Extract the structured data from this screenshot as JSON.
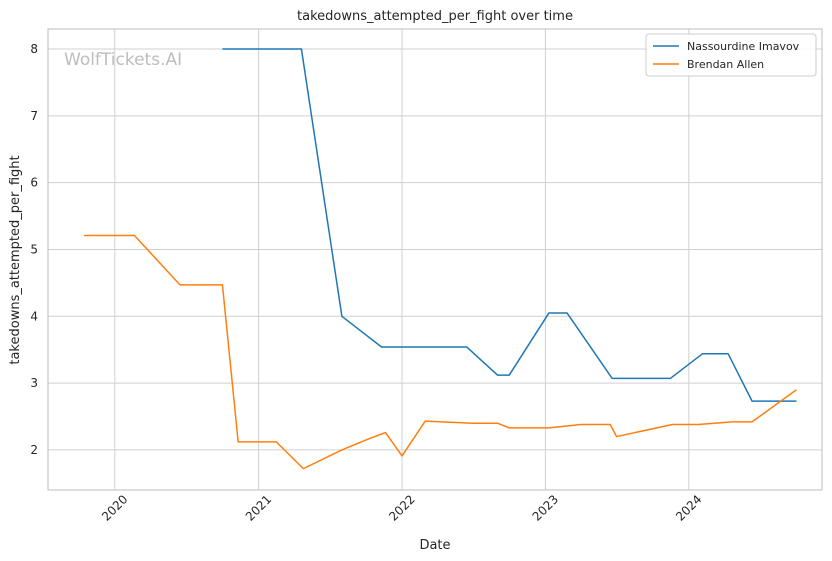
{
  "watermark": "WolfTickets.AI",
  "colors": {
    "grid": "#d0d0d0",
    "axis": "#bdbdbd",
    "series1": "#1f77b4",
    "series2": "#ff7f0e"
  },
  "chart_data": {
    "type": "line",
    "title": "takedowns_attempted_per_fight over time",
    "xlabel": "Date",
    "ylabel": "takedowns_attempted_per_fight",
    "xlim": [
      "2019-07-15",
      "2024-12-05"
    ],
    "ylim": [
      1.4,
      8.3
    ],
    "x_ticks": [
      "2020-01-01",
      "2021-01-01",
      "2022-01-01",
      "2023-01-01",
      "2024-01-01"
    ],
    "x_tick_labels": [
      "2020",
      "2021",
      "2022",
      "2023",
      "2024"
    ],
    "y_ticks": [
      2,
      3,
      4,
      5,
      6,
      7,
      8
    ],
    "y_tick_labels": [
      "2",
      "3",
      "4",
      "5",
      "6",
      "7",
      "8"
    ],
    "grid": true,
    "legend_position": "top-right",
    "series": [
      {
        "name": "Nassourdine Imavov",
        "color": "#1f77b4",
        "points": [
          [
            "2020-10-01",
            8.0
          ],
          [
            "2021-04-20",
            8.0
          ],
          [
            "2021-08-01",
            4.0
          ],
          [
            "2021-11-10",
            3.54
          ],
          [
            "2022-06-15",
            3.54
          ],
          [
            "2022-09-01",
            3.12
          ],
          [
            "2022-10-01",
            3.12
          ],
          [
            "2023-01-10",
            4.05
          ],
          [
            "2023-02-25",
            4.05
          ],
          [
            "2023-06-20",
            3.07
          ],
          [
            "2023-11-15",
            3.07
          ],
          [
            "2024-02-05",
            3.44
          ],
          [
            "2024-04-10",
            3.44
          ],
          [
            "2024-06-10",
            2.73
          ],
          [
            "2024-10-01",
            2.73
          ]
        ]
      },
      {
        "name": "Brendan Allen",
        "color": "#ff7f0e",
        "points": [
          [
            "2019-10-15",
            5.21
          ],
          [
            "2020-02-20",
            5.21
          ],
          [
            "2020-06-15",
            4.47
          ],
          [
            "2020-10-01",
            4.47
          ],
          [
            "2020-11-10",
            2.12
          ],
          [
            "2021-02-15",
            2.12
          ],
          [
            "2021-04-25",
            1.72
          ],
          [
            "2021-08-01",
            2.0
          ],
          [
            "2021-10-10",
            2.17
          ],
          [
            "2021-11-20",
            2.26
          ],
          [
            "2022-01-01",
            1.91
          ],
          [
            "2022-03-01",
            2.43
          ],
          [
            "2022-07-01",
            2.4
          ],
          [
            "2022-09-01",
            2.4
          ],
          [
            "2022-10-01",
            2.33
          ],
          [
            "2023-01-10",
            2.33
          ],
          [
            "2023-04-01",
            2.38
          ],
          [
            "2023-06-15",
            2.38
          ],
          [
            "2023-07-01",
            2.2
          ],
          [
            "2023-11-20",
            2.38
          ],
          [
            "2024-01-25",
            2.38
          ],
          [
            "2024-04-20",
            2.42
          ],
          [
            "2024-06-10",
            2.42
          ],
          [
            "2024-10-01",
            2.9
          ]
        ]
      }
    ]
  }
}
